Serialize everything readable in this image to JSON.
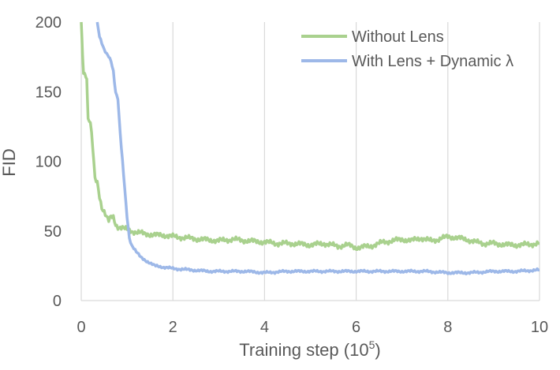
{
  "chart_data": {
    "type": "line",
    "xlabel": "Training step (10",
    "xlabel_exponent": "5",
    "xlabel_suffix": ")",
    "ylabel": "FID",
    "xlim": [
      0,
      10
    ],
    "ylim": [
      0,
      200
    ],
    "x_ticks": [
      "0",
      "2",
      "4",
      "6",
      "8",
      "10"
    ],
    "y_ticks": [
      "0",
      "50",
      "100",
      "150",
      "200"
    ],
    "grid": "vertical",
    "legend_position": "top-right",
    "series": [
      {
        "name": "Without Lens",
        "color": "#a9d18e",
        "x": [
          0.0,
          0.03,
          0.05,
          0.08,
          0.12,
          0.15,
          0.2,
          0.25,
          0.3,
          0.35,
          0.4,
          0.45,
          0.5,
          0.55,
          0.6,
          0.65,
          0.7,
          0.75,
          0.8,
          0.9,
          1.0,
          1.1,
          1.2,
          1.4,
          1.6,
          1.8,
          2.0,
          2.3,
          2.6,
          3.0,
          3.3,
          3.6,
          4.0,
          4.3,
          4.6,
          5.0,
          5.3,
          5.6,
          5.8,
          6.0,
          6.3,
          6.6,
          7.0,
          7.2,
          7.4,
          7.6,
          7.8,
          8.0,
          8.2,
          8.4,
          8.6,
          8.8,
          9.0,
          9.3,
          9.6,
          10.0
        ],
        "values": [
          200,
          175,
          165,
          162,
          160,
          130,
          128,
          110,
          87,
          85,
          75,
          67,
          64,
          60,
          57,
          60,
          60,
          55,
          53,
          52,
          51,
          50,
          49,
          48,
          47,
          47,
          46,
          45,
          44,
          43,
          44,
          43,
          42,
          41,
          41,
          40,
          41,
          39,
          40,
          38,
          39,
          42,
          44,
          43,
          45,
          43,
          44,
          46,
          45,
          44,
          42,
          41,
          41,
          40,
          40,
          41
        ]
      },
      {
        "name": "With Lens + Dynamic λ",
        "color": "#9db8e8",
        "x": [
          0.35,
          0.4,
          0.45,
          0.5,
          0.55,
          0.6,
          0.65,
          0.7,
          0.75,
          0.8,
          0.85,
          0.9,
          0.95,
          1.0,
          1.05,
          1.1,
          1.2,
          1.3,
          1.4,
          1.5,
          1.6,
          1.8,
          2.0,
          2.4,
          2.8,
          3.2,
          3.6,
          4.0,
          4.5,
          5.0,
          5.5,
          6.0,
          6.5,
          7.0,
          7.5,
          8.0,
          8.5,
          9.0,
          9.5,
          10.0
        ],
        "values": [
          200,
          190,
          185,
          180,
          177,
          175,
          172,
          165,
          150,
          145,
          120,
          100,
          80,
          60,
          45,
          40,
          35,
          31,
          29,
          27,
          25,
          24,
          23,
          22,
          21,
          21,
          21,
          20,
          21,
          21,
          21,
          21,
          21,
          21,
          21,
          20,
          20,
          21,
          21,
          22
        ]
      }
    ]
  }
}
